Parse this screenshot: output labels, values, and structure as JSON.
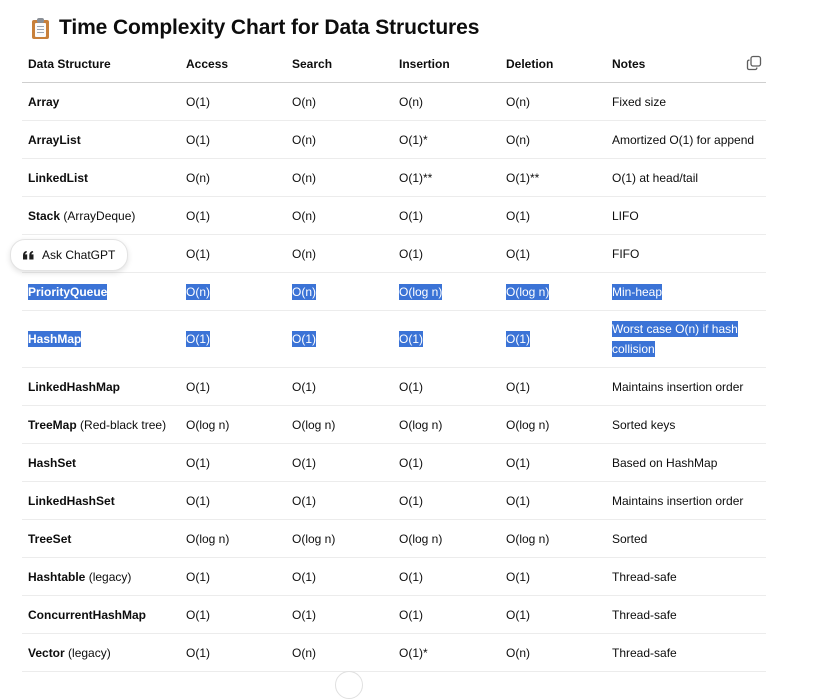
{
  "title": "Time Complexity Chart for Data Structures",
  "title_icon": "clipboard-icon",
  "ask_button_label": "Ask ChatGPT",
  "copy_icon": "copy-icon",
  "columns": [
    "Data Structure",
    "Access",
    "Search",
    "Insertion",
    "Deletion",
    "Notes"
  ],
  "rows": [
    {
      "name": "Array",
      "qual": "",
      "access": "O(1)",
      "search": "O(n)",
      "insertion": "O(n)",
      "deletion": "O(n)",
      "notes": "Fixed size",
      "selected": false
    },
    {
      "name": "ArrayList",
      "qual": "",
      "access": "O(1)",
      "search": "O(n)",
      "insertion": "O(1)*",
      "deletion": "O(n)",
      "notes": "Amortized O(1) for append",
      "selected": false
    },
    {
      "name": "LinkedList",
      "qual": "",
      "access": "O(n)",
      "search": "O(n)",
      "insertion": "O(1)**",
      "deletion": "O(1)**",
      "notes": "O(1) at head/tail",
      "selected": false
    },
    {
      "name": "Stack",
      "qual": "(ArrayDeque)",
      "access": "O(1)",
      "search": "O(n)",
      "insertion": "O(1)",
      "deletion": "O(1)",
      "notes": "LIFO",
      "selected": false
    },
    {
      "name": "",
      "qual": "",
      "access": "O(1)",
      "search": "O(n)",
      "insertion": "O(1)",
      "deletion": "O(1)",
      "notes": "FIFO",
      "selected": false,
      "partial": ")"
    },
    {
      "name": "PriorityQueue",
      "qual": "",
      "access": "O(n)",
      "search": "O(n)",
      "insertion": "O(log n)",
      "deletion": "O(log n)",
      "notes": "Min-heap",
      "selected": true
    },
    {
      "name": "HashMap",
      "qual": "",
      "access": "O(1)",
      "search": "O(1)",
      "insertion": "O(1)",
      "deletion": "O(1)",
      "notes": "Worst case O(n) if hash collision",
      "selected": true,
      "tall": true
    },
    {
      "name": "LinkedHashMap",
      "qual": "",
      "access": "O(1)",
      "search": "O(1)",
      "insertion": "O(1)",
      "deletion": "O(1)",
      "notes": "Maintains insertion order",
      "selected": false
    },
    {
      "name": "TreeMap",
      "qual": "(Red-black tree)",
      "access": "O(log n)",
      "search": "O(log n)",
      "insertion": "O(log n)",
      "deletion": "O(log n)",
      "notes": "Sorted keys",
      "selected": false
    },
    {
      "name": "HashSet",
      "qual": "",
      "access": "O(1)",
      "search": "O(1)",
      "insertion": "O(1)",
      "deletion": "O(1)",
      "notes": "Based on HashMap",
      "selected": false
    },
    {
      "name": "LinkedHashSet",
      "qual": "",
      "access": "O(1)",
      "search": "O(1)",
      "insertion": "O(1)",
      "deletion": "O(1)",
      "notes": "Maintains insertion order",
      "selected": false
    },
    {
      "name": "TreeSet",
      "qual": "",
      "access": "O(log n)",
      "search": "O(log n)",
      "insertion": "O(log n)",
      "deletion": "O(log n)",
      "notes": "Sorted",
      "selected": false
    },
    {
      "name": "Hashtable",
      "qual": "(legacy)",
      "access": "O(1)",
      "search": "O(1)",
      "insertion": "O(1)",
      "deletion": "O(1)",
      "notes": "Thread-safe",
      "selected": false
    },
    {
      "name": "ConcurrentHashMap",
      "qual": "",
      "access": "O(1)",
      "search": "O(1)",
      "insertion": "O(1)",
      "deletion": "O(1)",
      "notes": "Thread-safe",
      "selected": false
    },
    {
      "name": "Vector",
      "qual": "(legacy)",
      "access": "O(1)",
      "search": "O(n)",
      "insertion": "O(1)*",
      "deletion": "O(n)",
      "notes": "Thread-safe",
      "selected": false
    }
  ]
}
